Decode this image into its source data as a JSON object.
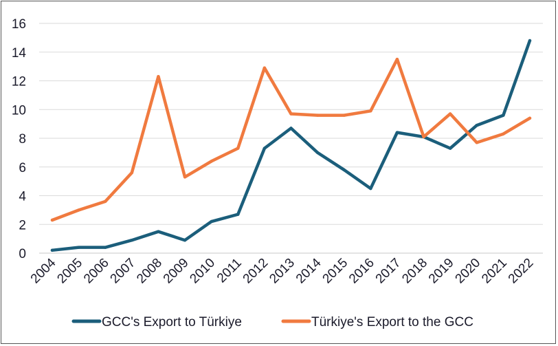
{
  "chart_data": {
    "type": "line",
    "title": "",
    "xlabel": "",
    "ylabel": "",
    "ylim": [
      0,
      16
    ],
    "yticks": [
      0,
      2,
      4,
      6,
      8,
      10,
      12,
      14,
      16
    ],
    "grid": "horizontal",
    "legend_position": "bottom",
    "categories": [
      "2004",
      "2005",
      "2006",
      "2007",
      "2008",
      "2009",
      "2010",
      "2011",
      "2012",
      "2013",
      "2014",
      "2015",
      "2016",
      "2017",
      "2018",
      "2019",
      "2020",
      "2021",
      "2022"
    ],
    "series": [
      {
        "name": "GCC's Export to Türkiye",
        "color": "#1b5e7b",
        "values": [
          0.2,
          0.4,
          0.4,
          0.9,
          1.5,
          0.9,
          2.2,
          2.7,
          7.3,
          8.7,
          7.0,
          5.8,
          4.5,
          8.4,
          8.1,
          7.3,
          8.9,
          9.6,
          14.8
        ]
      },
      {
        "name": "Türkiye's Export to the GCC",
        "color": "#f07a3f",
        "values": [
          2.3,
          3.0,
          3.6,
          5.6,
          12.3,
          5.3,
          6.4,
          7.3,
          12.9,
          9.7,
          9.6,
          9.6,
          9.9,
          13.5,
          8.1,
          9.7,
          7.7,
          8.3,
          9.4
        ]
      }
    ]
  }
}
